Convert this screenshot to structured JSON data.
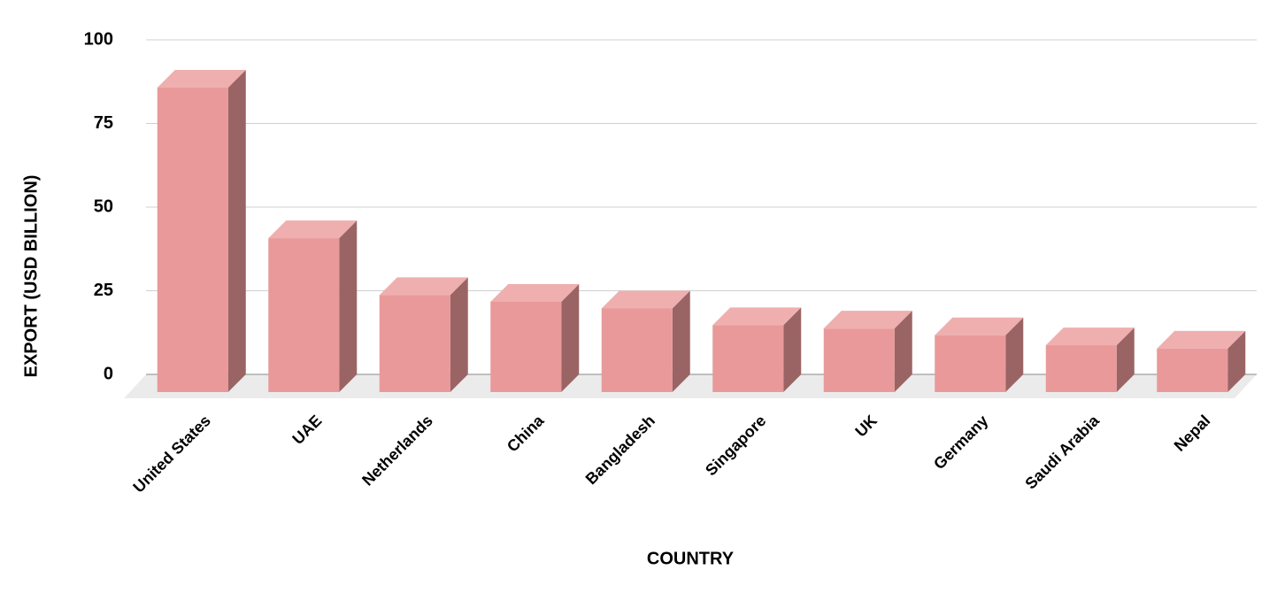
{
  "chart_data": {
    "type": "bar3d",
    "x_label": "COUNTRY",
    "y_label": "EXPORT (USD BILLION)",
    "categories": [
      "United States",
      "UAE",
      "Netherlands",
      "China",
      "Bangladesh",
      "Singapore",
      "UK",
      "Germany",
      "Saudi Arabia",
      "Nepal"
    ],
    "values": [
      91,
      46,
      29,
      27,
      25,
      20,
      19,
      17,
      14,
      13
    ],
    "color": "#e99999",
    "ylim": [
      0,
      100
    ],
    "yticks": [
      0,
      25,
      50,
      75,
      100
    ],
    "grid": true
  }
}
